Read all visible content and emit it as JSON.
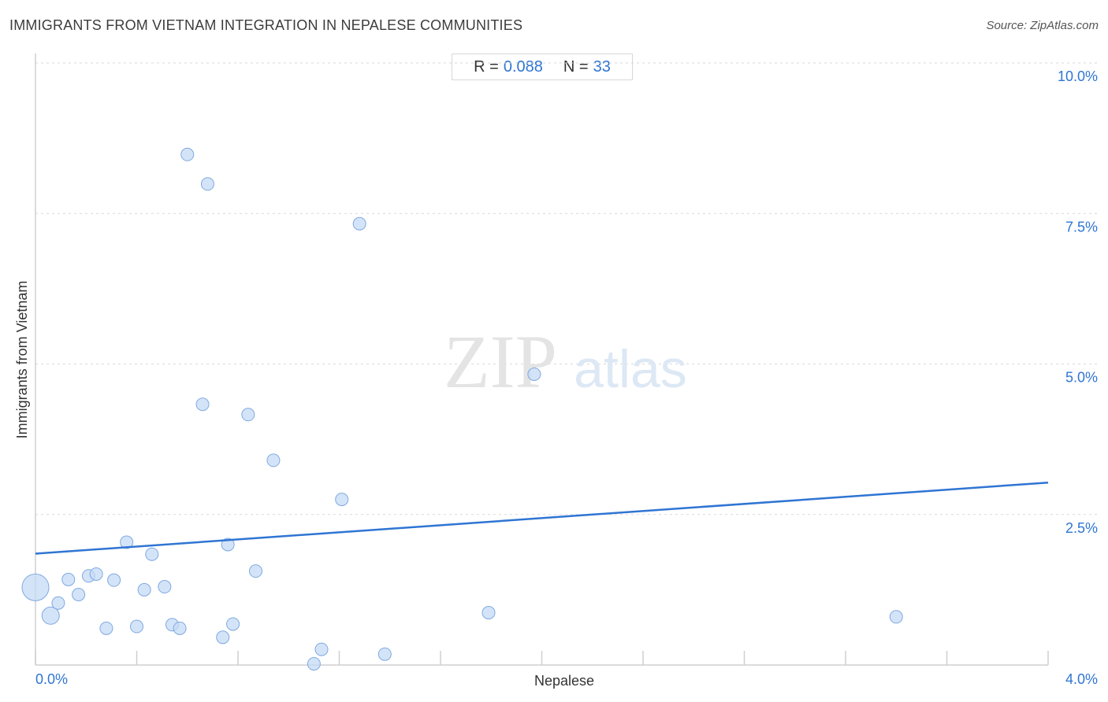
{
  "title": "IMMIGRANTS FROM VIETNAM INTEGRATION IN NEPALESE COMMUNITIES",
  "source": "Source: ZipAtlas.com",
  "stats": {
    "r_label": "R =",
    "r_value": "0.088",
    "n_label": "N =",
    "n_value": "33"
  },
  "watermark": {
    "zip": "ZIP",
    "atlas": "atlas"
  },
  "colors": {
    "accent": "#2f75d3",
    "point_fill": "#c5dbf5",
    "point_stroke": "#7fa9e0",
    "grid": "#d9d9d9"
  },
  "chart_data": {
    "type": "scatter",
    "xlabel": "Nepalese",
    "ylabel": "Immigrants from Vietnam",
    "xlim": [
      0,
      4
    ],
    "ylim": [
      0,
      10
    ],
    "x_tick_labels": [
      "0.0%",
      "4.0%"
    ],
    "y_ticks": [
      {
        "value": 2.5,
        "label": "2.5%"
      },
      {
        "value": 5.0,
        "label": "5.0%"
      },
      {
        "value": 7.5,
        "label": "7.5%"
      },
      {
        "value": 10.0,
        "label": "10.0%"
      }
    ],
    "grid": true,
    "points": [
      {
        "x": 0.0,
        "y": 1.29,
        "size": "large"
      },
      {
        "x": 0.06,
        "y": 0.82,
        "size": "medium"
      },
      {
        "x": 0.09,
        "y": 1.03,
        "size": "small"
      },
      {
        "x": 0.13,
        "y": 1.42,
        "size": "small"
      },
      {
        "x": 0.17,
        "y": 1.17,
        "size": "small"
      },
      {
        "x": 0.21,
        "y": 1.48,
        "size": "small"
      },
      {
        "x": 0.24,
        "y": 1.51,
        "size": "small"
      },
      {
        "x": 0.28,
        "y": 0.61,
        "size": "small"
      },
      {
        "x": 0.31,
        "y": 1.41,
        "size": "small"
      },
      {
        "x": 0.36,
        "y": 2.04,
        "size": "small"
      },
      {
        "x": 0.4,
        "y": 0.64,
        "size": "small"
      },
      {
        "x": 0.43,
        "y": 1.25,
        "size": "small"
      },
      {
        "x": 0.46,
        "y": 1.84,
        "size": "small"
      },
      {
        "x": 0.51,
        "y": 1.3,
        "size": "small"
      },
      {
        "x": 0.54,
        "y": 0.67,
        "size": "small"
      },
      {
        "x": 0.57,
        "y": 0.61,
        "size": "small"
      },
      {
        "x": 0.6,
        "y": 8.48,
        "size": "small"
      },
      {
        "x": 0.66,
        "y": 4.33,
        "size": "small"
      },
      {
        "x": 0.68,
        "y": 7.99,
        "size": "small"
      },
      {
        "x": 0.74,
        "y": 0.46,
        "size": "small"
      },
      {
        "x": 0.76,
        "y": 2.0,
        "size": "small"
      },
      {
        "x": 0.78,
        "y": 0.68,
        "size": "small"
      },
      {
        "x": 0.84,
        "y": 4.16,
        "size": "small"
      },
      {
        "x": 0.87,
        "y": 1.56,
        "size": "small"
      },
      {
        "x": 0.94,
        "y": 3.4,
        "size": "small"
      },
      {
        "x": 1.1,
        "y": 0.02,
        "size": "small"
      },
      {
        "x": 1.13,
        "y": 0.26,
        "size": "small"
      },
      {
        "x": 1.21,
        "y": 2.75,
        "size": "small"
      },
      {
        "x": 1.28,
        "y": 7.33,
        "size": "small"
      },
      {
        "x": 1.38,
        "y": 0.18,
        "size": "small"
      },
      {
        "x": 1.79,
        "y": 0.87,
        "size": "small"
      },
      {
        "x": 1.97,
        "y": 4.83,
        "size": "small"
      },
      {
        "x": 3.4,
        "y": 0.8,
        "size": "small"
      }
    ],
    "trendline": {
      "x": [
        0,
        4
      ],
      "y": [
        1.85,
        3.03
      ]
    }
  }
}
